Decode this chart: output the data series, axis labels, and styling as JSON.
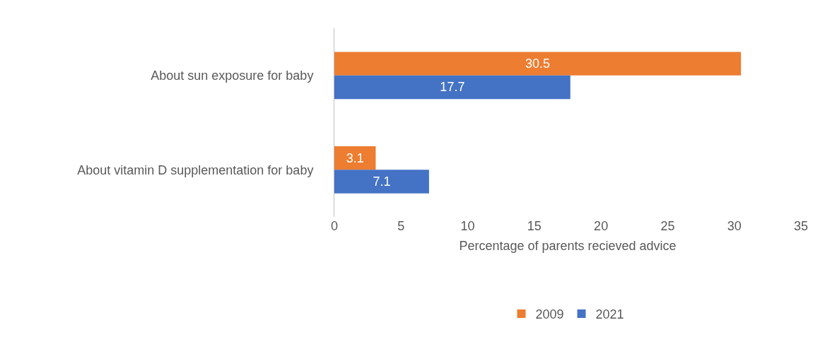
{
  "chart_data": {
    "type": "bar",
    "orientation": "horizontal",
    "xlabel": "Percentage of parents recieved advice",
    "categories": [
      "About sun exposure for baby",
      "About vitamin D supplementation for baby"
    ],
    "series": [
      {
        "name": "2009",
        "color": "#ed7d31",
        "values": [
          30.5,
          3.1
        ]
      },
      {
        "name": "2021",
        "color": "#4472c4",
        "values": [
          17.7,
          7.1
        ]
      }
    ],
    "xlim": [
      0,
      35
    ],
    "xticks": [
      0,
      5,
      10,
      15,
      20,
      25,
      30,
      35
    ],
    "legend": "bottom",
    "data_labels": true
  }
}
